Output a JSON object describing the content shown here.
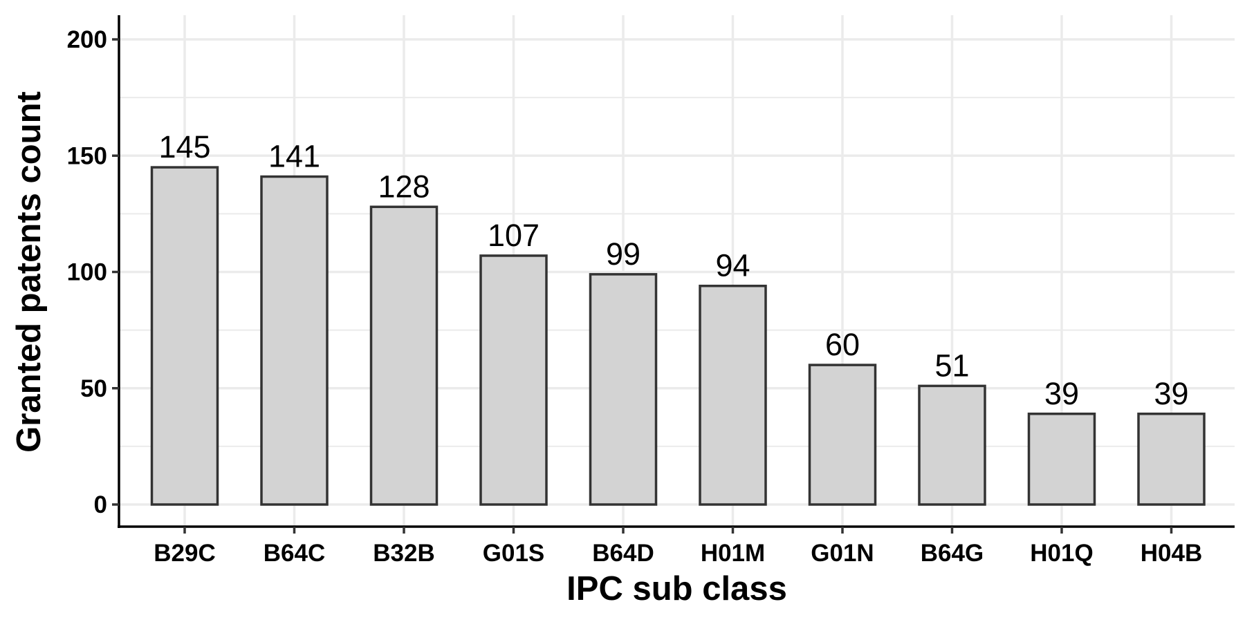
{
  "chart_data": {
    "type": "bar",
    "categories": [
      "B29C",
      "B64C",
      "B32B",
      "G01S",
      "B64D",
      "H01M",
      "G01N",
      "B64G",
      "H01Q",
      "H04B"
    ],
    "values": [
      145,
      141,
      128,
      107,
      99,
      94,
      60,
      51,
      39,
      39
    ],
    "data_labels": [
      "145",
      "141",
      "128",
      "107",
      "99",
      "94",
      "60",
      "51",
      "39",
      "39"
    ],
    "title": "",
    "xlabel": "IPC sub class",
    "ylabel": "Granted patents count",
    "ylim": [
      0,
      210
    ],
    "yticks": [
      0,
      50,
      100,
      150,
      200
    ],
    "ytick_labels": [
      "0",
      "50",
      "100",
      "150",
      "200"
    ],
    "grid": true,
    "legend": "none",
    "colors": {
      "bar_fill": "#d3d3d3",
      "bar_stroke": "#333333",
      "grid": "#ebebeb",
      "axis": "#000000",
      "text": "#000000"
    }
  }
}
